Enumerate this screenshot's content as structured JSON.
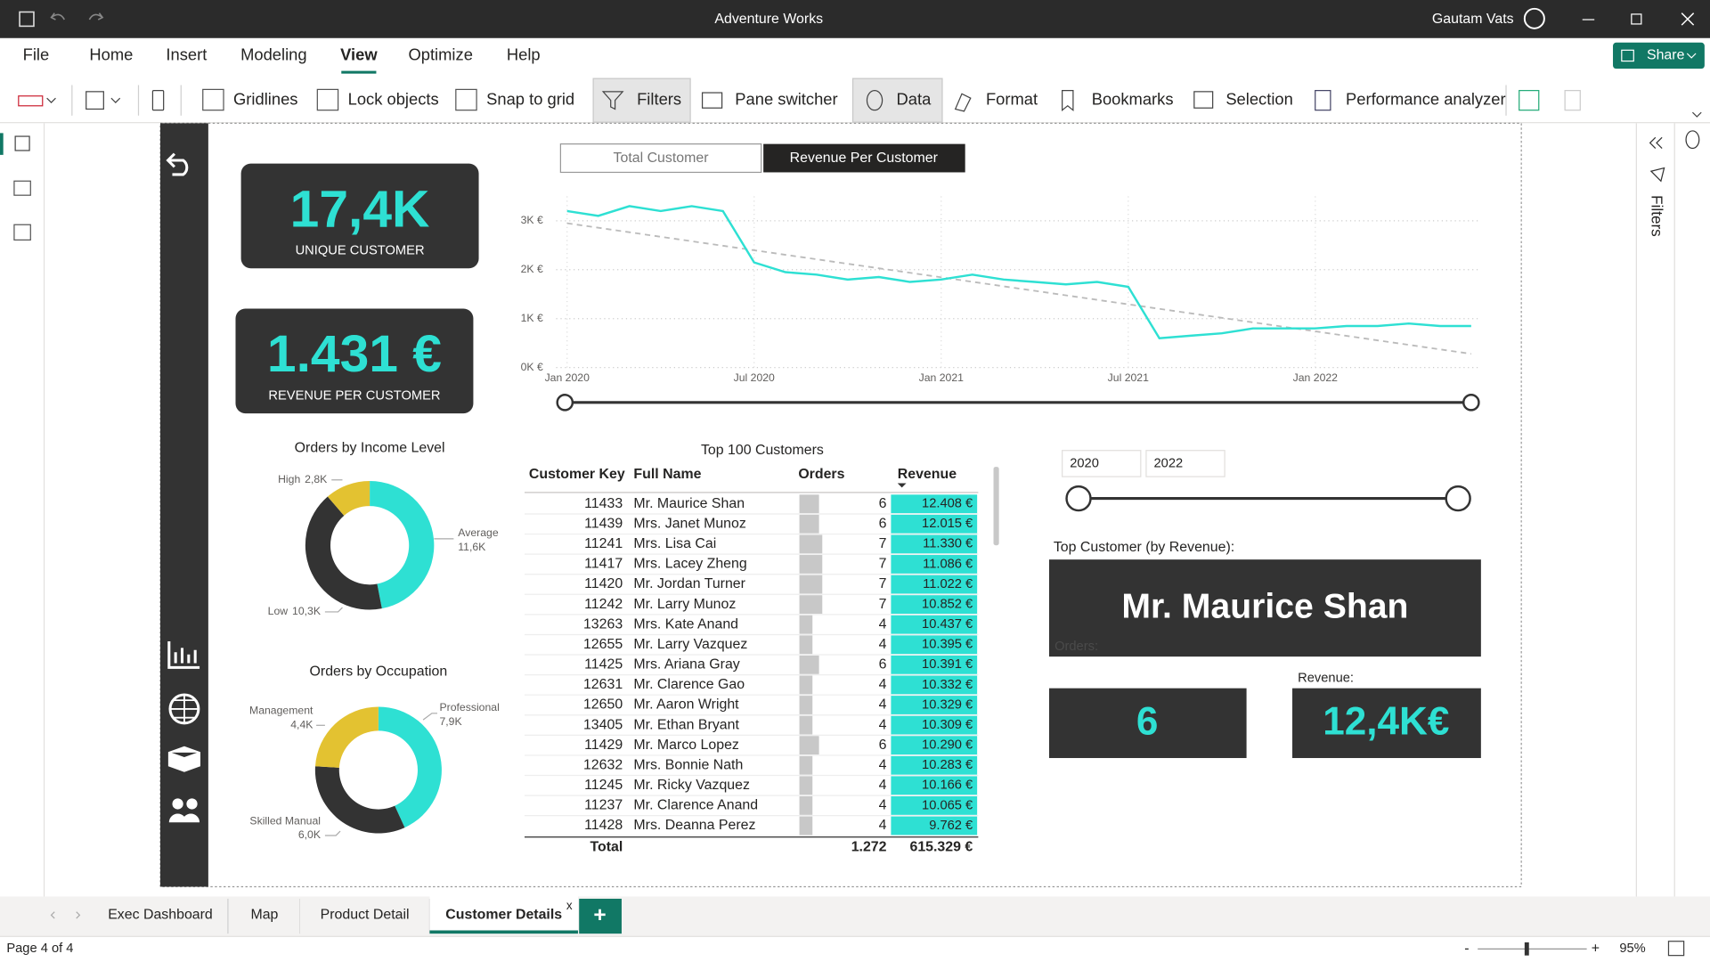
{
  "window": {
    "title": "Adventure Works",
    "user": "Gautam Vats"
  },
  "menu": [
    "File",
    "Home",
    "Insert",
    "Modeling",
    "View",
    "Optimize",
    "Help"
  ],
  "share": "Share",
  "toolbar": [
    "Gridlines",
    "Lock objects",
    "Snap to grid",
    "Filters",
    "Pane switcher",
    "Data",
    "Format",
    "Bookmarks",
    "Selection",
    "Performance analyzer"
  ],
  "filters_pane": "Filters",
  "cards": [
    {
      "value": "17,4K",
      "label": "UNIQUE CUSTOMER"
    },
    {
      "value": "1.431 €",
      "label": "REVENUE PER CUSTOMER"
    }
  ],
  "toggle": [
    "Total Customer",
    "Revenue Per Customer"
  ],
  "table": {
    "title": "Top 100 Customers",
    "columns": [
      "Customer Key",
      "Full Name",
      "Orders",
      "Revenue"
    ],
    "rows": [
      [
        11433,
        "Mr. Maurice Shan",
        6,
        "12.408 €"
      ],
      [
        11439,
        "Mrs. Janet Munoz",
        6,
        "12.015 €"
      ],
      [
        11241,
        "Mrs. Lisa Cai",
        7,
        "11.330 €"
      ],
      [
        11417,
        "Mrs. Lacey Zheng",
        7,
        "11.086 €"
      ],
      [
        11420,
        "Mr. Jordan Turner",
        7,
        "11.022 €"
      ],
      [
        11242,
        "Mr. Larry Munoz",
        7,
        "10.852 €"
      ],
      [
        13263,
        "Mrs. Kate Anand",
        4,
        "10.437 €"
      ],
      [
        12655,
        "Mr. Larry Vazquez",
        4,
        "10.395 €"
      ],
      [
        11425,
        "Mrs. Ariana Gray",
        6,
        "10.391 €"
      ],
      [
        12631,
        "Mr. Clarence Gao",
        4,
        "10.332 €"
      ],
      [
        12650,
        "Mr. Aaron Wright",
        4,
        "10.329 €"
      ],
      [
        13405,
        "Mr. Ethan Bryant",
        4,
        "10.309 €"
      ],
      [
        11429,
        "Mr. Marco Lopez",
        6,
        "10.290 €"
      ],
      [
        12632,
        "Mrs. Bonnie Nath",
        4,
        "10.283 €"
      ],
      [
        11245,
        "Mr. Ricky Vazquez",
        4,
        "10.166 €"
      ],
      [
        11237,
        "Mr. Clarence Anand",
        4,
        "10.065 €"
      ],
      [
        11428,
        "Mrs. Deanna Perez",
        4,
        "9.762 €"
      ]
    ],
    "total": {
      "label": "Total",
      "orders": "1.272",
      "revenue": "615.329 €"
    }
  },
  "slicer": {
    "from": "2020",
    "to": "2022"
  },
  "top_customer": {
    "title": "Top Customer (by Revenue):",
    "name": "Mr. Maurice Shan",
    "orders_label": "Orders:",
    "orders": "6",
    "revenue_label": "Revenue:",
    "revenue": "12,4K€"
  },
  "tabs": [
    "Exec Dashboard",
    "Map",
    "Product Detail",
    "Customer Details"
  ],
  "tab_close": "x",
  "add_tab": "+",
  "status": {
    "page": "Page 4 of 4",
    "zoom_out": "-",
    "zoom_in": "+",
    "zoom": "95%"
  },
  "chart_data": [
    {
      "type": "line",
      "color": "#2ee0d3",
      "x": [
        "2020-01",
        "2020-02",
        "2020-03",
        "2020-04",
        "2020-05",
        "2020-06",
        "2020-07",
        "2020-08",
        "2020-09",
        "2020-10",
        "2020-11",
        "2020-12",
        "2021-01",
        "2021-02",
        "2021-03",
        "2021-04",
        "2021-05",
        "2021-06",
        "2021-07",
        "2021-08",
        "2021-09",
        "2021-10",
        "2021-11",
        "2021-12",
        "2022-01",
        "2022-02",
        "2022-03",
        "2022-04",
        "2022-05",
        "2022-06"
      ],
      "values": [
        3200,
        3100,
        3300,
        3200,
        3300,
        3200,
        2150,
        1950,
        1900,
        1800,
        1850,
        1750,
        1800,
        1900,
        1800,
        1750,
        1700,
        1750,
        1650,
        600,
        650,
        700,
        800,
        800,
        800,
        850,
        850,
        900,
        850,
        850
      ],
      "trend_line": {
        "color": "#bbbbbb",
        "values": [
          2950,
          280
        ]
      },
      "xlim": [
        "2020-01",
        "2022-06"
      ],
      "xticks": [
        {
          "value": "2020-01",
          "label": "Jan 2020"
        },
        {
          "value": "2020-07",
          "label": "Jul 2020"
        },
        {
          "value": "2021-01",
          "label": "Jan 2021"
        },
        {
          "value": "2021-07",
          "label": "Jul 2021"
        },
        {
          "value": "2022-01",
          "label": "Jan 2022"
        }
      ],
      "ylim": [
        0,
        3500
      ],
      "yticks": [
        {
          "value": 0,
          "label": "0K €"
        },
        {
          "value": 1000,
          "label": "1K €"
        },
        {
          "value": 2000,
          "label": "2K €"
        },
        {
          "value": 3000,
          "label": "3K €"
        }
      ],
      "grid": true
    },
    {
      "type": "pie",
      "donut": true,
      "title": "Orders by Income Level",
      "categories": [
        "Average",
        "Low",
        "High"
      ],
      "values": [
        11.6,
        10.3,
        2.8
      ],
      "value_labels": [
        "11,6K",
        "10,3K",
        "2,8K"
      ],
      "colors": [
        "#2ee0d3",
        "#333333",
        "#e3c231"
      ]
    },
    {
      "type": "pie",
      "donut": true,
      "title": "Orders by Occupation",
      "categories": [
        "Professional",
        "Skilled Manual",
        "Management"
      ],
      "values": [
        7.9,
        6.0,
        4.4
      ],
      "value_labels": [
        "7,9K",
        "6,0K",
        "4,4K"
      ],
      "colors": [
        "#2ee0d3",
        "#333333",
        "#e3c231"
      ]
    }
  ]
}
